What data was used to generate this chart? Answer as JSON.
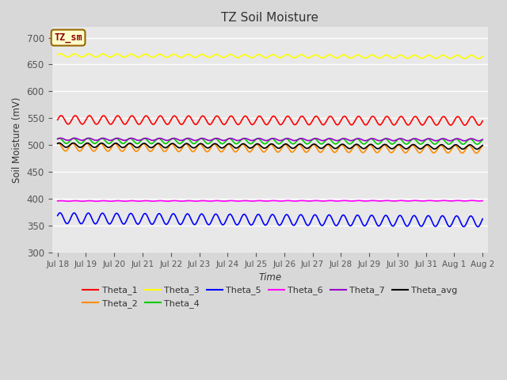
{
  "title": "TZ Soil Moisture",
  "xlabel": "Time",
  "ylabel": "Soil Moisture (mV)",
  "ylim": [
    300,
    720
  ],
  "yticks": [
    300,
    350,
    400,
    450,
    500,
    550,
    600,
    650,
    700
  ],
  "n_points": 1440,
  "days_total": 15.0,
  "series": {
    "Theta_1": {
      "color": "#ff0000",
      "base": 547,
      "amp": 8,
      "freq": 2.0,
      "phase": 0.0,
      "trend": -2.0
    },
    "Theta_2": {
      "color": "#ff8c00",
      "base": 496,
      "amp": 7,
      "freq": 2.0,
      "phase": 1.2,
      "trend": -4.0
    },
    "Theta_3": {
      "color": "#ffff00",
      "base": 667,
      "amp": 3,
      "freq": 2.0,
      "phase": 0.3,
      "trend": -3.0
    },
    "Theta_4": {
      "color": "#00cc00",
      "base": 508,
      "amp": 5,
      "freq": 2.0,
      "phase": 0.8,
      "trend": -1.5
    },
    "Theta_5": {
      "color": "#0000ff",
      "base": 364,
      "amp": 10,
      "freq": 2.0,
      "phase": 0.5,
      "trend": -6.0
    },
    "Theta_6": {
      "color": "#ff00ff",
      "base": 396,
      "amp": 0.5,
      "freq": 2.0,
      "phase": 0.0,
      "trend": 0.5
    },
    "Theta_7": {
      "color": "#9900cc",
      "base": 511,
      "amp": 2,
      "freq": 2.0,
      "phase": 0.2,
      "trend": -1.0
    },
    "Theta_avg": {
      "color": "#000000",
      "base": 500,
      "amp": 4,
      "freq": 2.0,
      "phase": 0.9,
      "trend": -3.5
    }
  },
  "draw_order": [
    "Theta_3",
    "Theta_6",
    "Theta_5",
    "Theta_1",
    "Theta_4",
    "Theta_2",
    "Theta_avg",
    "Theta_7"
  ],
  "legend_order": [
    "Theta_1",
    "Theta_2",
    "Theta_3",
    "Theta_4",
    "Theta_5",
    "Theta_6",
    "Theta_7",
    "Theta_avg"
  ],
  "legend_label": "TZ_sm",
  "legend_label_color": "#8b0000",
  "legend_box_facecolor": "#ffffcc",
  "legend_box_edgecolor": "#996600",
  "plot_bg_color": "#e8e8e8",
  "fig_bg_color": "#d8d8d8",
  "grid_color": "#ffffff",
  "tick_label_color": "#555555",
  "axis_label_color": "#333333"
}
